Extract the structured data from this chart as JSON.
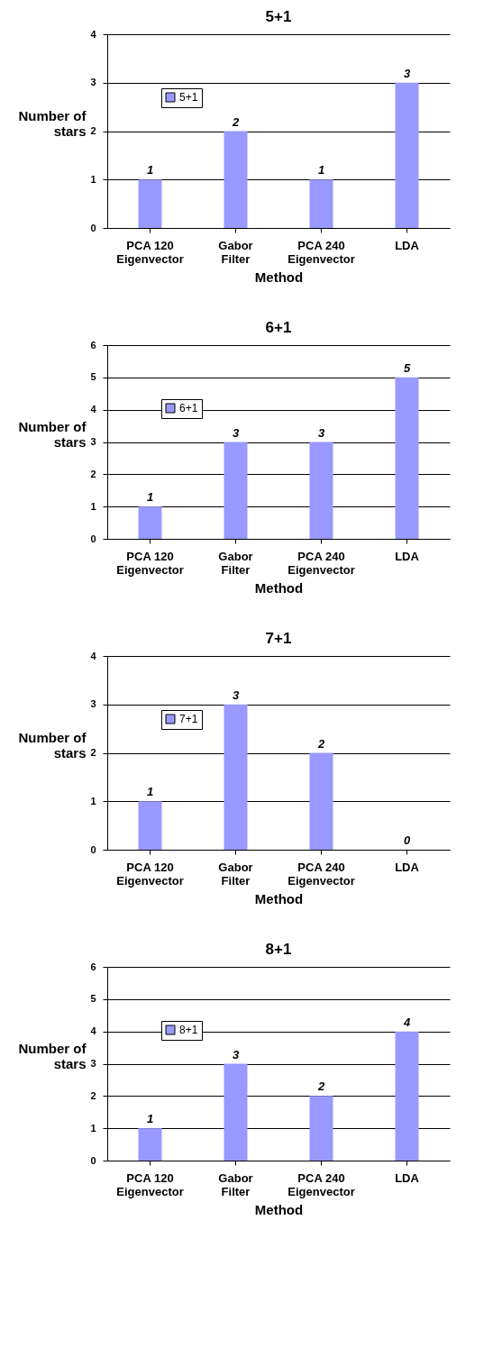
{
  "chart_data": [
    {
      "type": "bar",
      "title": "5+1",
      "xlabel": "Method",
      "ylabel": "Number of stars",
      "categories": [
        "PCA 120 Eigenvector",
        "Gabor Filter",
        "PCA 240 Eigenvector",
        "LDA"
      ],
      "series": [
        {
          "name": "5+1",
          "color": "#9999ff",
          "values": [
            1,
            2,
            1,
            3
          ]
        }
      ],
      "ylim": [
        0,
        4
      ],
      "yticks": [
        0,
        1,
        2,
        3,
        4
      ],
      "grid": "y",
      "legend": "top left",
      "data_labels": true
    },
    {
      "type": "bar",
      "title": "6+1",
      "xlabel": "Method",
      "ylabel": "Number of stars",
      "categories": [
        "PCA 120 Eigenvector",
        "Gabor Filter",
        "PCA 240 Eigenvector",
        "LDA"
      ],
      "series": [
        {
          "name": "6+1",
          "color": "#9999ff",
          "values": [
            1,
            3,
            3,
            5
          ]
        }
      ],
      "ylim": [
        0,
        6
      ],
      "yticks": [
        0,
        1,
        2,
        3,
        4,
        5,
        6
      ],
      "grid": "y",
      "legend": "top left",
      "data_labels": true
    },
    {
      "type": "bar",
      "title": "7+1",
      "xlabel": "Method",
      "ylabel": "Number of stars",
      "categories": [
        "PCA 120 Eigenvector",
        "Gabor Filter",
        "PCA 240 Eigenvector",
        "LDA"
      ],
      "series": [
        {
          "name": "7+1",
          "color": "#9999ff",
          "values": [
            1,
            3,
            2,
            0
          ]
        }
      ],
      "ylim": [
        0,
        4
      ],
      "yticks": [
        0,
        1,
        2,
        3,
        4
      ],
      "grid": "y",
      "legend": "top left",
      "data_labels": true
    },
    {
      "type": "bar",
      "title": "8+1",
      "xlabel": "Method",
      "ylabel": "Number of stars",
      "categories": [
        "PCA 120 Eigenvector",
        "Gabor Filter",
        "PCA 240 Eigenvector",
        "LDA"
      ],
      "series": [
        {
          "name": "8+1",
          "color": "#9999ff",
          "values": [
            1,
            3,
            2,
            4
          ]
        }
      ],
      "ylim": [
        0,
        6
      ],
      "yticks": [
        0,
        1,
        2,
        3,
        4,
        5,
        6
      ],
      "grid": "y",
      "legend": "top left",
      "data_labels": true
    }
  ]
}
